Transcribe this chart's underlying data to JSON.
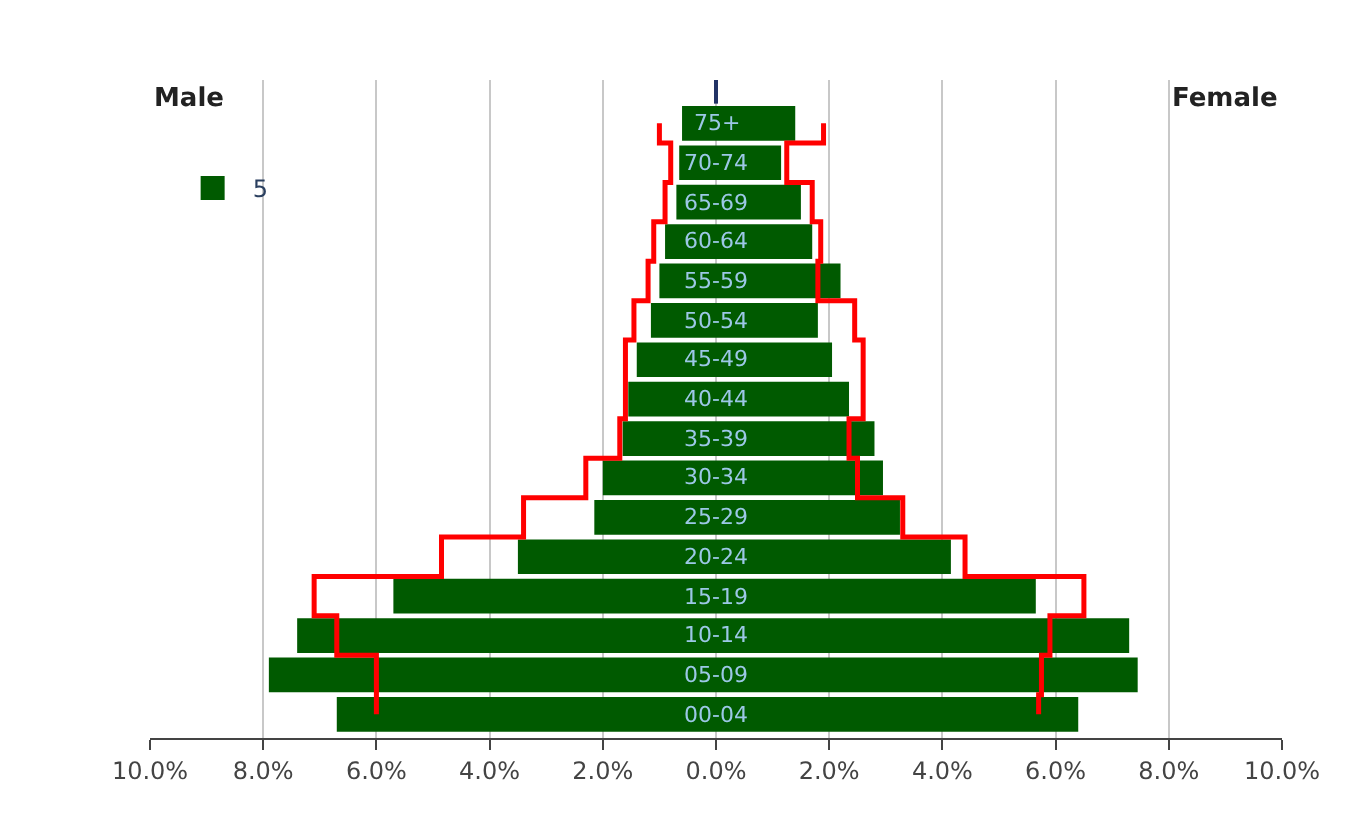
{
  "chart_data": {
    "type": "bar",
    "orientation": "horizontal",
    "stacked": true,
    "categories": [
      "75+",
      "70-74",
      "65-69",
      "60-64",
      "55-59",
      "50-54",
      "45-49",
      "40-44",
      "35-39",
      "30-34",
      "25-29",
      "20-24",
      "15-19",
      "10-14",
      "05-09",
      "00-04"
    ],
    "series": [
      {
        "color": "#005a00",
        "values": [
          -0.6,
          -0.65,
          -0.7,
          -0.9,
          -1.0,
          -1.15,
          -1.4,
          -1.55,
          -1.65,
          -2.0,
          -2.15,
          -3.5,
          -5.7,
          -7.4,
          -7.9,
          -6.7
        ]
      },
      {
        "name": "5",
        "color": "#005a00",
        "values": [
          1.4,
          1.15,
          1.5,
          1.7,
          2.2,
          1.8,
          2.05,
          2.35,
          2.8,
          2.95,
          3.25,
          4.15,
          5.65,
          7.3,
          7.45,
          6.4
        ]
      },
      {
        "type": "step",
        "color": "#ff0000",
        "values": [
          -1.0,
          -0.8,
          -0.9,
          -1.1,
          -1.2,
          -1.45,
          -1.6,
          -1.6,
          -1.7,
          -2.3,
          -3.4,
          -4.85,
          -7.1,
          -6.7,
          -6.0,
          -6.0
        ]
      },
      {
        "type": "step",
        "color": "#ff0000",
        "values": [
          1.9,
          1.25,
          1.7,
          1.85,
          1.8,
          2.45,
          2.6,
          2.6,
          2.35,
          2.5,
          3.3,
          4.4,
          6.5,
          5.9,
          5.75,
          5.7
        ]
      }
    ],
    "xlim": [
      -10,
      10
    ],
    "xticks": [
      {
        "value": -10,
        "label": "10.0%"
      },
      {
        "value": -8,
        "label": "8.0%"
      },
      {
        "value": -6,
        "label": "6.0%"
      },
      {
        "value": -4,
        "label": "4.0%"
      },
      {
        "value": -2,
        "label": "2.0%"
      },
      {
        "value": 0,
        "label": "0.0%"
      },
      {
        "value": 2,
        "label": "2.0%"
      },
      {
        "value": 4,
        "label": "4.0%"
      },
      {
        "value": 6,
        "label": "6.0%"
      },
      {
        "value": 8,
        "label": "8.0%"
      },
      {
        "value": 10,
        "label": "10.0%"
      }
    ],
    "annotations": [
      "Male",
      "Female"
    ],
    "grid": "x",
    "legend": "top left"
  }
}
